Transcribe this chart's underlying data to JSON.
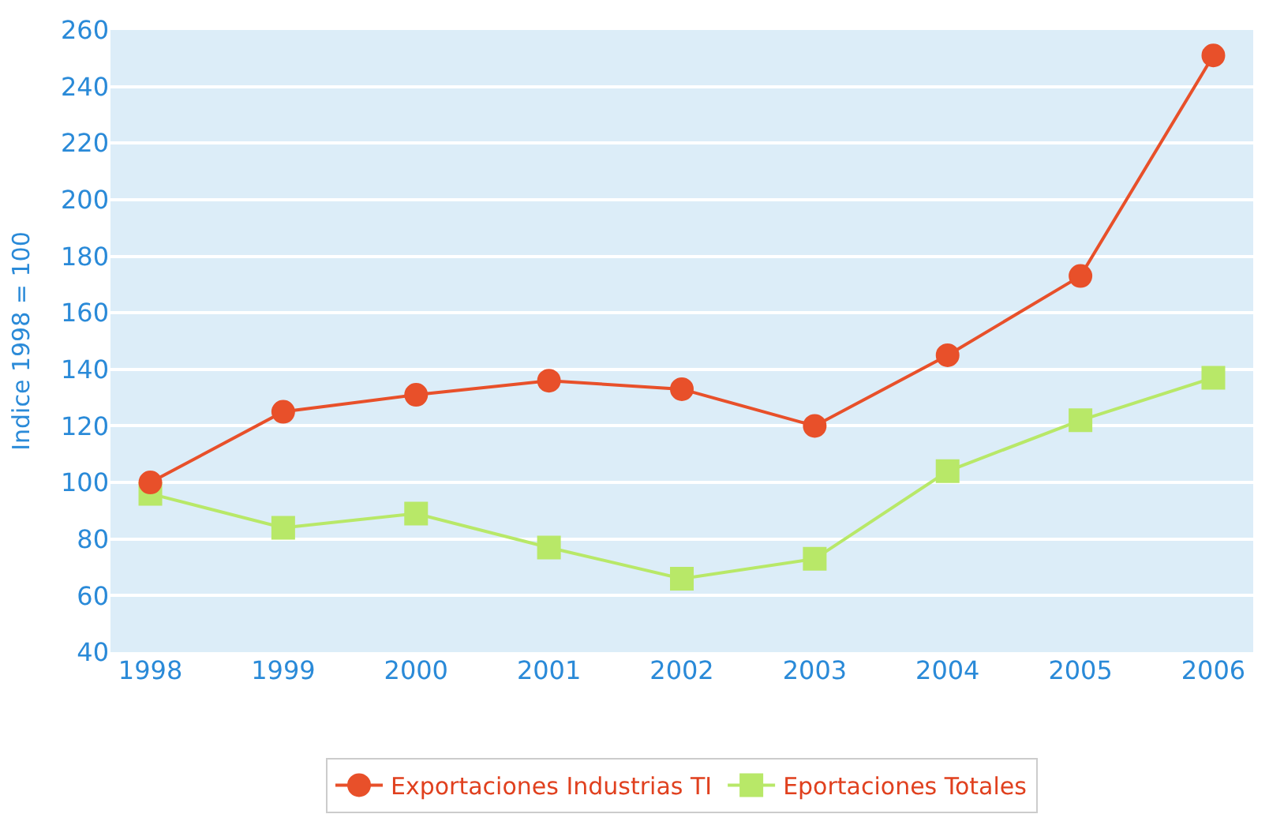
{
  "chart_data": {
    "type": "line",
    "ylabel": "Indice 1998 = 100",
    "categories": [
      "1998",
      "1999",
      "2000",
      "2001",
      "2002",
      "2003",
      "2004",
      "2005",
      "2006"
    ],
    "series": [
      {
        "name": "Exportaciones Industrias TI",
        "color": "#e8502a",
        "marker": "circle",
        "values": [
          100,
          125,
          131,
          136,
          133,
          120,
          145,
          173,
          251
        ]
      },
      {
        "name": "Eportaciones Totales",
        "color": "#b8e868",
        "marker": "square",
        "values": [
          96,
          84,
          89,
          77,
          66,
          73,
          104,
          122,
          137
        ]
      }
    ],
    "ylim": [
      40,
      260
    ],
    "yticks": [
      40,
      60,
      80,
      100,
      120,
      140,
      160,
      180,
      200,
      220,
      240,
      260
    ],
    "grid": "y",
    "legend": "bottom"
  }
}
